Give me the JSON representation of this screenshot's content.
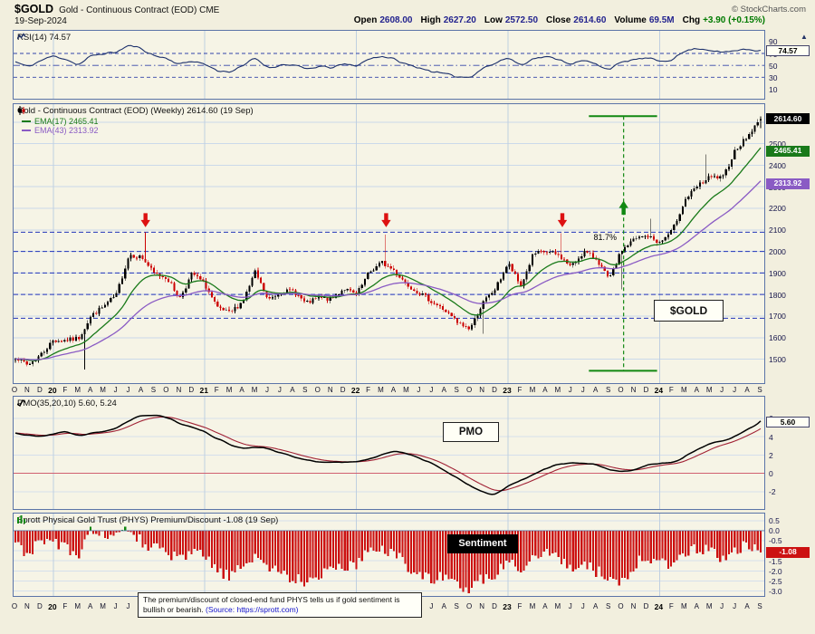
{
  "header": {
    "symbol": "$GOLD",
    "name": "Gold - Continuous Contract (EOD) CME",
    "date": "19-Sep-2024",
    "copyright": "© StockCharts.com",
    "quote": {
      "open": {
        "label": "Open",
        "value": "2608.00"
      },
      "high": {
        "label": "High",
        "value": "2627.20"
      },
      "low": {
        "label": "Low",
        "value": "2572.50"
      },
      "close": {
        "label": "Close",
        "value": "2614.60"
      },
      "volume": {
        "label": "Volume",
        "value": "69.5M"
      },
      "chg": {
        "label": "Chg",
        "value": "+3.90 (+0.15%)"
      }
    }
  },
  "xaxis": {
    "labels": [
      "O",
      "N",
      "D",
      "20",
      "F",
      "M",
      "A",
      "M",
      "J",
      "J",
      "A",
      "S",
      "O",
      "N",
      "D",
      "21",
      "F",
      "M",
      "A",
      "M",
      "J",
      "J",
      "A",
      "S",
      "O",
      "N",
      "D",
      "22",
      "F",
      "M",
      "A",
      "M",
      "J",
      "J",
      "A",
      "S",
      "O",
      "N",
      "D",
      "23",
      "F",
      "M",
      "A",
      "M",
      "J",
      "J",
      "A",
      "S",
      "O",
      "N",
      "D",
      "24",
      "F",
      "M",
      "A",
      "M",
      "J",
      "J",
      "A",
      "S"
    ],
    "year_indices": [
      3,
      15,
      27,
      39,
      51
    ]
  },
  "chart_data": [
    {
      "id": "rsi",
      "type": "line",
      "label": "RSI(14) 74.57",
      "current_box": "74.57",
      "color": "#1B2F6B",
      "ylim": [
        -6,
        108
      ],
      "yticks": [
        90,
        70,
        50,
        30,
        10
      ],
      "hlines": {
        "dashed": [
          70,
          30
        ],
        "dashdot": [
          50
        ]
      },
      "series_monthly": [
        56,
        47,
        58,
        66,
        61,
        50,
        66,
        70,
        72,
        84,
        78,
        66,
        62,
        51,
        58,
        52,
        41,
        39,
        48,
        64,
        45,
        51,
        51,
        43,
        48,
        46,
        52,
        49,
        61,
        66,
        60,
        51,
        46,
        40,
        35,
        31,
        30,
        46,
        53,
        64,
        50,
        62,
        64,
        61,
        52,
        58,
        52,
        43,
        55,
        60,
        62,
        57,
        60,
        74,
        79,
        76,
        71,
        75,
        77,
        74.6
      ]
    },
    {
      "id": "price",
      "type": "candlestick",
      "title": "Gold - Continuous Contract (EOD) (Weekly) 2614.60 (19 Sep)",
      "legend": [
        {
          "label": "EMA(17) 2465.41",
          "color": "#1A7A1A",
          "period": 17
        },
        {
          "label": "EMA(43) 2313.92",
          "color": "#8A5BC4",
          "period": 43
        }
      ],
      "boxes": {
        "price": "2614.60",
        "ema17": "2465.41",
        "ema43": "2313.92"
      },
      "up_color": "#000000",
      "down_color": "#CC0000",
      "ylim": [
        1389,
        2683
      ],
      "yticks": [
        2500,
        2400,
        2300,
        2200,
        2100,
        2000,
        1900,
        1800,
        1700,
        1600,
        1500
      ],
      "grid_values": [
        2600,
        2500,
        2400,
        2300,
        2200,
        2100,
        2000,
        1900,
        1800,
        1700,
        1600,
        1500
      ],
      "support_lines": [
        2089,
        2000,
        1900,
        1800,
        1690
      ],
      "monthly_close": [
        1512,
        1472,
        1520,
        1588,
        1587,
        1596,
        1701,
        1745,
        1798,
        1986,
        1973,
        1896,
        1878,
        1781,
        1899,
        1847,
        1734,
        1714,
        1769,
        1905,
        1772,
        1812,
        1818,
        1757,
        1784,
        1776,
        1829,
        1797,
        1901,
        1949,
        1911,
        1848,
        1807,
        1766,
        1726,
        1668,
        1641,
        1760,
        1826,
        1945,
        1837,
        1986,
        1999,
        1982,
        1929,
        1999,
        1966,
        1866,
        2005,
        2057,
        2072,
        2040,
        2095,
        2238,
        2302,
        2345,
        2339,
        2473,
        2535,
        2612
      ],
      "key_weeks": [
        {
          "m": 5.5,
          "low": 1451
        },
        {
          "m": 10.3,
          "high": 2089
        },
        {
          "m": 29.35,
          "high": 2078
        },
        {
          "m": 37.1,
          "low": 1618
        },
        {
          "m": 43.3,
          "high": 2085
        },
        {
          "m": 48.05,
          "low": 1823
        },
        {
          "m": 50.2,
          "high": 2152
        },
        {
          "m": 54.6,
          "high": 2449
        }
      ],
      "last": {
        "open": 2608.0,
        "high": 2627.2,
        "low": 2572.5,
        "close": 2614.6
      },
      "annotations": {
        "red_arrow_months": [
          10.3,
          29.35,
          43.3
        ],
        "red_arrow_price": 2112,
        "red_arrow_color": "#DD1111",
        "green_arrow_month": 48.15,
        "green_arrow_price": 2235,
        "green_color": "#118811",
        "green_vline_month": 48.15,
        "green_hlines": {
          "top": 2627.2,
          "bottom": 1446.2,
          "m0": 45.4,
          "m1": 50.8
        },
        "retrace_label": "81.7%",
        "symbol_label": "$GOLD"
      }
    },
    {
      "id": "pmo",
      "type": "line",
      "label": "PMO(35,20,10) 5.60, 5.24",
      "current_box": "5.60",
      "overlay_label": "PMO",
      "colors": {
        "pmo": "#000000",
        "signal": "#A12235",
        "zero_line": "#D06070"
      },
      "signal_period": 10,
      "ylim": [
        -3.9,
        8.35
      ],
      "yticks": [
        6,
        4,
        2,
        0,
        -2
      ],
      "series_monthly": [
        4.4,
        4.1,
        4.0,
        4.3,
        4.6,
        4.1,
        4.3,
        4.6,
        4.9,
        5.7,
        6.3,
        6.4,
        6.1,
        5.5,
        5.0,
        4.5,
        3.8,
        3.1,
        2.7,
        2.9,
        2.7,
        2.2,
        1.8,
        1.5,
        1.2,
        1.2,
        1.2,
        1.2,
        1.5,
        2.1,
        2.4,
        2.2,
        1.7,
        1.0,
        0.3,
        -0.5,
        -1.4,
        -2.1,
        -2.4,
        -1.4,
        -0.8,
        -0.2,
        0.5,
        1.0,
        1.1,
        1.1,
        0.9,
        0.4,
        0.1,
        0.4,
        0.9,
        1.1,
        1.1,
        1.8,
        2.7,
        3.3,
        3.6,
        4.0,
        4.8,
        5.6
      ]
    },
    {
      "id": "sentiment",
      "type": "bar",
      "label": "Sprott Physical Gold Trust (PHYS) Premium/Discount -1.08 (19 Sep)",
      "current_box": "-1.08",
      "overlay_label": "Sentiment",
      "colors": {
        "neg": "#CC1111",
        "pos": "#118811"
      },
      "ylim": [
        -3.25,
        0.85
      ],
      "yticks": [
        "0.5",
        "0.0",
        "-0.5",
        "-1.0",
        "-1.5",
        "-2.0",
        "-2.5",
        "-3.0"
      ],
      "last": -1.08,
      "series_monthly": [
        -0.7,
        -1.1,
        -0.6,
        -0.5,
        -0.8,
        -1.6,
        0.2,
        -0.2,
        -0.4,
        0.1,
        -0.5,
        -0.9,
        -1.1,
        -1.5,
        -1.1,
        -1.3,
        -2.0,
        -2.3,
        -1.8,
        -1.2,
        -1.8,
        -2.1,
        -2.4,
        -2.5,
        -2.2,
        -1.8,
        -2.0,
        -1.6,
        -1.0,
        -0.8,
        -1.1,
        -1.7,
        -2.1,
        -2.6,
        -2.2,
        -2.7,
        -2.9,
        -2.4,
        -2.1,
        -1.5,
        -2.0,
        -1.2,
        -1.0,
        -1.3,
        -1.9,
        -1.6,
        -2.0,
        -2.4,
        -2.6,
        -1.8,
        -1.2,
        -1.6,
        -1.9,
        -1.0,
        -0.8,
        -1.1,
        -1.3,
        -0.9,
        -0.7,
        -1.08
      ],
      "note_text": "The premium/discount of closed-end fund PHYS tells us if gold sentiment is bullish or bearish. ",
      "note_source": "(Source: https://sprott.com)"
    }
  ]
}
